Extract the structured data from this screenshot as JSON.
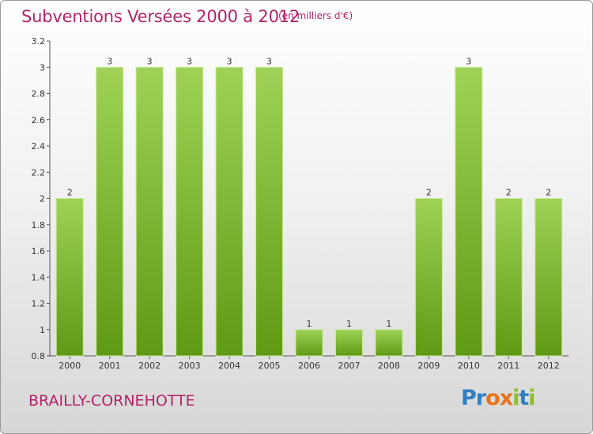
{
  "title": "Subventions Versées 2000 à 2012",
  "unit_note": "(en milliers d'€)",
  "commune": "BRAILLY-CORNEHOTTE",
  "logo": {
    "letters": [
      "P",
      "r",
      "o",
      "x",
      "i",
      "t",
      "i"
    ],
    "colors": [
      "#2f7fc1",
      "#2f7fc1",
      "#e8731f",
      "#e8731f",
      "#8cbf26",
      "#2f7fc1",
      "#8cbf26"
    ]
  },
  "colors": {
    "bar_top": "#9fd256",
    "bar_bottom": "#5f9a14",
    "title": "#b3226b"
  },
  "chart_data": {
    "type": "bar",
    "categories": [
      "2000",
      "2001",
      "2002",
      "2003",
      "2004",
      "2005",
      "2006",
      "2007",
      "2008",
      "2009",
      "2010",
      "2011",
      "2012"
    ],
    "values": [
      2,
      3,
      3,
      3,
      3,
      3,
      1,
      1,
      1,
      2,
      3,
      2,
      2
    ],
    "data_labels": [
      "2",
      "3",
      "3",
      "3",
      "3",
      "3",
      "1",
      "1",
      "1",
      "2",
      "3",
      "2",
      "2"
    ],
    "yticks": [
      0.8,
      1,
      1.2,
      1.4,
      1.6,
      1.8,
      2,
      2.2,
      2.4,
      2.6,
      2.8,
      3,
      3.2
    ],
    "ytick_labels": [
      "0.8",
      "1",
      "1.2",
      "1.4",
      "1.6",
      "1.8",
      "2",
      "2.2",
      "2.4",
      "2.6",
      "2.8",
      "3",
      "3.2"
    ],
    "ylim": [
      0.8,
      3.2
    ],
    "title": "Subventions Versées 2000 à 2012",
    "xlabel": "",
    "ylabel": "",
    "grid": false
  }
}
